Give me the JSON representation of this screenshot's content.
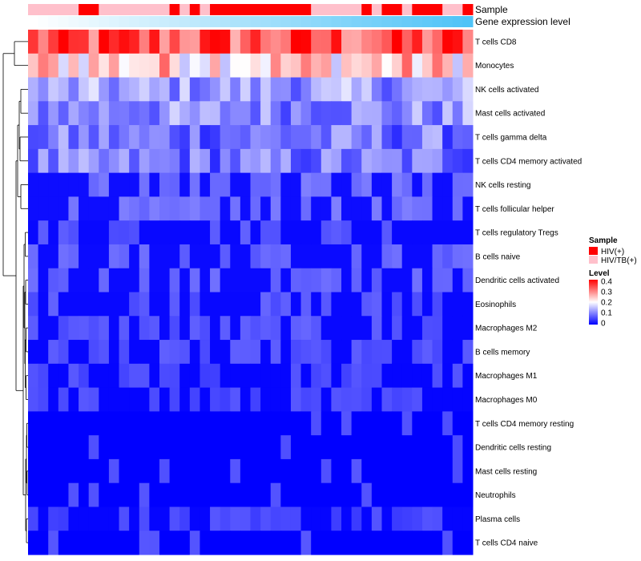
{
  "chart_data": {
    "type": "heatmap",
    "annotation_labels": [
      "Sample",
      "Gene expression level"
    ],
    "rows": [
      "T cells CD8",
      "Monocytes",
      "NK cells activated",
      "Mast cells activated",
      "T cells gamma delta",
      "T cells CD4 memory activated",
      "NK cells resting",
      "T cells follicular helper",
      "T cells regulatory  Tregs",
      "B cells naive",
      "Dendritic cells activated",
      "Eosinophils",
      "Macrophages M2",
      "B cells memory",
      "Macrophages M1",
      "Macrophages M0",
      "T cells CD4 memory resting",
      "Dendritic cells resting",
      "Mast cells resting",
      "Neutrophils",
      "Plasma cells",
      "T cells CD4 naive"
    ],
    "n_columns": 44,
    "sample_groups": [
      "HIV/TB(+)",
      "HIV/TB(+)",
      "HIV/TB(+)",
      "HIV/TB(+)",
      "HIV/TB(+)",
      "HIV(+)",
      "HIV(+)",
      "HIV/TB(+)",
      "HIV/TB(+)",
      "HIV/TB(+)",
      "HIV/TB(+)",
      "HIV/TB(+)",
      "HIV/TB(+)",
      "HIV/TB(+)",
      "HIV(+)",
      "HIV/TB(+)",
      "HIV(+)",
      "HIV/TB(+)",
      "HIV(+)",
      "HIV(+)",
      "HIV(+)",
      "HIV(+)",
      "HIV(+)",
      "HIV(+)",
      "HIV(+)",
      "HIV(+)",
      "HIV(+)",
      "HIV(+)",
      "HIV/TB(+)",
      "HIV/TB(+)",
      "HIV/TB(+)",
      "HIV/TB(+)",
      "HIV/TB(+)",
      "HIV(+)",
      "HIV/TB(+)",
      "HIV(+)",
      "HIV(+)",
      "HIV/TB(+)",
      "HIV(+)",
      "HIV(+)",
      "HIV(+)",
      "HIV/TB(+)",
      "HIV/TB(+)",
      "HIV(+)"
    ],
    "legend_sample": {
      "title": "Sample",
      "entries": [
        {
          "label": "HIV(+)",
          "color": "#ff0000"
        },
        {
          "label": "HIV/TB(+)",
          "color": "#ffc0cb"
        }
      ]
    },
    "legend_level": {
      "title": "Level",
      "ticks": [
        "0.4",
        "0.3",
        "0.2",
        "0.1",
        "0"
      ],
      "range": [
        0,
        0.4
      ],
      "colors": [
        "#0000ff",
        "#ffffff",
        "#ff0000"
      ]
    },
    "gene_expression_gradient": [
      "#ffffff",
      "#4fc3f7"
    ],
    "row_means": [
      0.33,
      0.24,
      0.12,
      0.11,
      0.09,
      0.09,
      0.05,
      0.05,
      0.03,
      0.04,
      0.04,
      0.03,
      0.03,
      0.025,
      0.02,
      0.02,
      0.012,
      0.008,
      0.006,
      0.003,
      0.018,
      0.012
    ]
  }
}
